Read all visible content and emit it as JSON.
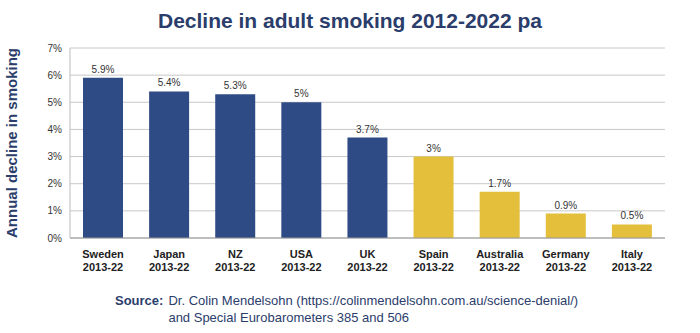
{
  "chart_data": {
    "type": "bar",
    "title": "Decline in adult smoking 2012-2022 pa",
    "y_label": "Annual decline in smoking",
    "categories": [
      "Sweden\n2013-22",
      "Japan\n2013-22",
      "NZ\n2013-22",
      "USA\n2013-22",
      "UK\n2013-22",
      "Spain\n2013-22",
      "Australia\n2013-22",
      "Germany\n2013-22",
      "Italy\n2013-22"
    ],
    "values": [
      5.9,
      5.4,
      5.3,
      5,
      3.7,
      3,
      1.7,
      0.9,
      0.5
    ],
    "value_labels": [
      "5.9%",
      "5.4%",
      "5.3%",
      "5%",
      "3.7%",
      "3%",
      "1.7%",
      "0.9%",
      "0.5%"
    ],
    "colors": [
      "#2f4b85",
      "#2f4b85",
      "#2f4b85",
      "#2f4b85",
      "#2f4b85",
      "#e3bf3b",
      "#e3bf3b",
      "#e3bf3b",
      "#e3bf3b"
    ],
    "ylim": [
      0,
      7
    ],
    "yticks": [
      {
        "value": 0,
        "label": "0%"
      },
      {
        "value": 1,
        "label": "1%"
      },
      {
        "value": 2,
        "label": "2%"
      },
      {
        "value": 3,
        "label": "3%"
      },
      {
        "value": 4,
        "label": "4%"
      },
      {
        "value": 5,
        "label": "5%"
      },
      {
        "value": 6,
        "label": "6%"
      },
      {
        "value": 7,
        "label": "7%"
      }
    ],
    "grid": true,
    "data_labels": true,
    "source_label": "Source:",
    "source": "Dr. Colin Mendelsohn (https://colinmendelsohn.com.au/science-denial/) and Special Eurobarometers 385 and 506"
  }
}
